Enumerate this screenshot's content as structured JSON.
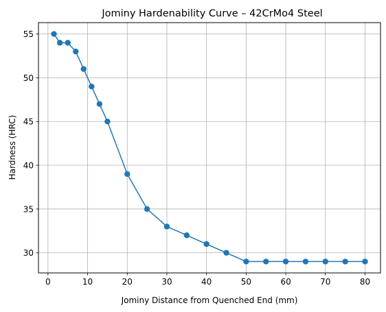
{
  "chart_data": {
    "type": "line",
    "title": "Jominy Hardenability Curve – 42CrMo4 Steel",
    "xlabel": "Jominy Distance from Quenched End (mm)",
    "ylabel": "Hardness (HRC)",
    "xlim": [
      -2.4,
      83.9
    ],
    "ylim": [
      27.7,
      56.3
    ],
    "xticks": [
      0,
      10,
      20,
      30,
      40,
      50,
      60,
      70,
      80
    ],
    "yticks": [
      30,
      35,
      40,
      45,
      50,
      55
    ],
    "grid": true,
    "marker": "circle",
    "color": "#1f77b4",
    "series": [
      {
        "x": [
          1.5,
          3,
          5,
          7,
          9,
          11,
          13,
          15,
          20,
          25,
          30,
          35,
          40,
          45,
          50,
          55,
          60,
          65,
          70,
          75,
          80
        ],
        "y": [
          55,
          54,
          54,
          53,
          51,
          49,
          47,
          45,
          39,
          35,
          33,
          32,
          31,
          30,
          29,
          29,
          29,
          29,
          29,
          29,
          29
        ]
      }
    ]
  }
}
